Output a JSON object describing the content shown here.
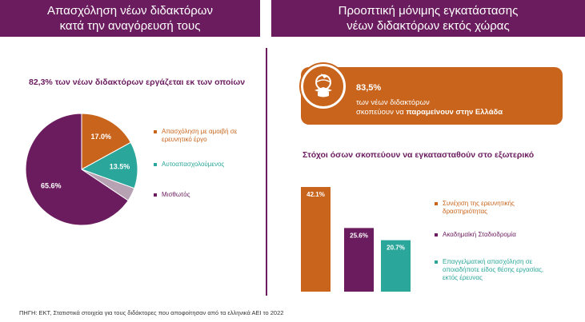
{
  "header_left": {
    "line1": "Απασχόληση νέων διδακτόρων",
    "line2": "κατά την αναγόρευσή τους"
  },
  "header_right": {
    "line1": "Προοπτική μόνιμης εγκατάστασης",
    "line2": "νέων διδακτόρων εκτός χώρας"
  },
  "pie_section": {
    "subtitle": "82,3% των νέων διδακτόρων εργάζεται εκ των οποίων"
  },
  "banner": {
    "percent": "83,5%",
    "text1": "των νέων διδακτόρων",
    "text2_prefix": "σκοπεύουν να ",
    "text2_bold": "παραμείνουν στην Ελλάδα"
  },
  "bar_section": {
    "subtitle": "Στόχοι όσων σκοπεύουν να εγκατασταθούν στο εξωτερικό"
  },
  "source": "ΠΗΓΗ: ΕΚΤ, Στατιστικά στοιχεία για τους διδάκτορες που αποφοίτησαν από τα ελληνικά ΑΕΙ το 2022",
  "chart_data": [
    {
      "type": "pie",
      "slices": [
        {
          "label": "Απασχόληση με αμοιβή σε ερευνητικό έργο",
          "value": 17.0,
          "value_label": "17.0%",
          "color": "#c8641c"
        },
        {
          "label": "Αυτοαπασχολούμενος",
          "value": 13.5,
          "value_label": "13.5%",
          "color": "#2aa69a"
        },
        {
          "label": "",
          "value": 3.9,
          "value_label": "",
          "color": "#b7a2b4"
        },
        {
          "label": "Μισθωτός",
          "value": 65.6,
          "value_label": "65.6%",
          "color": "#6b1c5f"
        }
      ],
      "legend_placement": "right"
    },
    {
      "type": "bar",
      "categories": [
        "Συνέχιση της ερευνητικής δραστηριότητας",
        "Ακαδημαϊκή Σταδιοδρομία",
        "Επαγγελματική απασχόληση σε οποιαδήποτε είδος θέσης εργασίας, εκτός έρευνας"
      ],
      "values": [
        42.1,
        25.6,
        20.7
      ],
      "value_labels": [
        "42.1%",
        "25.6%",
        "20.7%"
      ],
      "colors": [
        "#c8641c",
        "#6b1c5f",
        "#2aa69a"
      ],
      "ylim": [
        0,
        45
      ],
      "grid": false,
      "legend_placement": "right"
    }
  ]
}
